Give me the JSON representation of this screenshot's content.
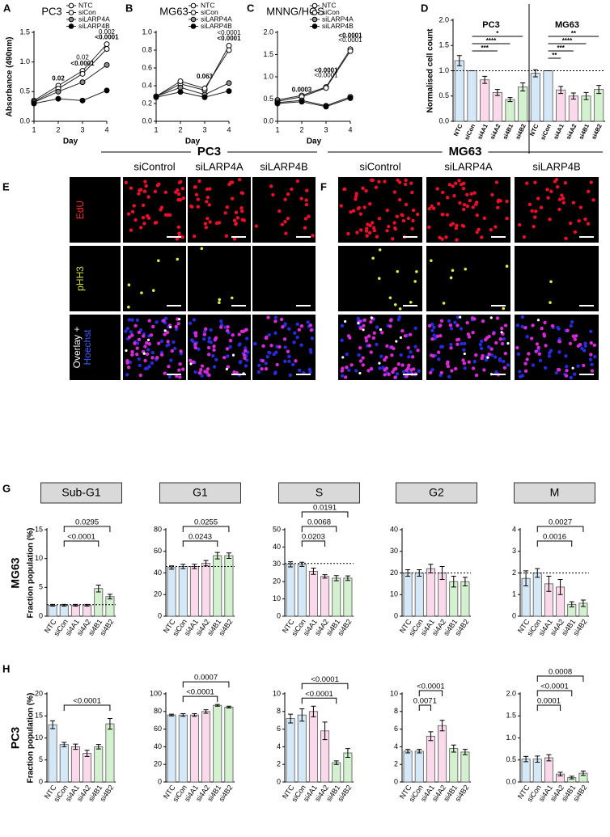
{
  "chart_data": [
    {
      "type": "line",
      "panel": "A",
      "title": "PC3",
      "ylabel": "Absorbance (490nm)",
      "xlabel": "Day",
      "x": [
        1,
        2,
        3,
        4
      ],
      "xlim": [
        1,
        4
      ],
      "xticks": [
        1,
        2,
        3,
        4
      ],
      "ylim": [
        0,
        1.5
      ],
      "yticks": [
        {
          "value": 0,
          "label": "0.0"
        },
        0.5,
        {
          "value": 1,
          "label": "1.0"
        },
        1.5
      ],
      "series": [
        {
          "name": "NTC",
          "color": "#ffffff",
          "values": [
            0.35,
            0.6,
            0.85,
            1.3
          ]
        },
        {
          "name": "siCon",
          "color": "#ffffff",
          "values": [
            0.33,
            0.55,
            0.8,
            1.22
          ]
        },
        {
          "name": "siLARP4A",
          "color": "#8c8c8c",
          "values": [
            0.32,
            0.5,
            0.66,
            0.95
          ]
        },
        {
          "name": "siLARP4B",
          "color": "#000000",
          "values": [
            0.3,
            0.38,
            0.35,
            0.52
          ]
        }
      ],
      "annotations": [
        {
          "x": 2,
          "y": 0.72,
          "text": "0.02",
          "color": "#000000",
          "bold": true
        },
        {
          "x": 3,
          "y": 1.07,
          "text": "0.02",
          "color": "#8c8c8c",
          "bold": false
        },
        {
          "x": 3,
          "y": 0.97,
          "text": "<0.0001",
          "color": "#000000",
          "bold": true
        },
        {
          "x": 4,
          "y": 1.5,
          "text": "0.002",
          "color": "#8c8c8c",
          "bold": false
        },
        {
          "x": 4,
          "y": 1.41,
          "text": "<0.0001",
          "color": "#000000",
          "bold": true
        }
      ]
    },
    {
      "type": "line",
      "panel": "B",
      "title": "MG63",
      "xlabel": "Day",
      "x": [
        1,
        2,
        3,
        4
      ],
      "xlim": [
        1,
        4
      ],
      "xticks": [
        1,
        2,
        3,
        4
      ],
      "ylim": [
        0,
        1
      ],
      "yticks": [
        {
          "value": 0,
          "label": "0.0"
        },
        0.2,
        0.4,
        0.6,
        0.8,
        {
          "value": 1,
          "label": "1.0"
        }
      ],
      "series": [
        {
          "name": "NTC",
          "color": "#ffffff",
          "values": [
            0.28,
            0.42,
            0.35,
            0.85
          ]
        },
        {
          "name": "siCon",
          "color": "#ffffff",
          "values": [
            0.28,
            0.45,
            0.37,
            0.8
          ]
        },
        {
          "name": "siLARP4A",
          "color": "#8c8c8c",
          "values": [
            0.28,
            0.38,
            0.3,
            0.43
          ]
        },
        {
          "name": "siLARP4B",
          "color": "#000000",
          "values": [
            0.27,
            0.33,
            0.27,
            0.34
          ]
        }
      ],
      "annotations": [
        {
          "x": 3,
          "y": 0.5,
          "text": "0.063",
          "color": "#000000",
          "bold": true
        },
        {
          "x": 4,
          "y": 0.99,
          "text": "<0.0001",
          "color": "#8c8c8c",
          "bold": false
        },
        {
          "x": 4,
          "y": 0.93,
          "text": "<0.0001",
          "color": "#000000",
          "bold": true
        }
      ]
    },
    {
      "type": "line",
      "panel": "C",
      "title": "MNNG/HOS",
      "xlabel": "Day",
      "x": [
        1,
        2,
        3,
        4
      ],
      "xlim": [
        1,
        4
      ],
      "xticks": [
        1,
        2,
        3,
        4
      ],
      "ylim": [
        0,
        2
      ],
      "yticks": [
        {
          "value": 0,
          "label": "0.0"
        },
        0.5,
        {
          "value": 1,
          "label": "1.0"
        },
        1.5,
        {
          "value": 2,
          "label": "2.0"
        }
      ],
      "series": [
        {
          "name": "NTC",
          "color": "#ffffff",
          "values": [
            0.48,
            0.58,
            0.77,
            1.62
          ]
        },
        {
          "name": "siCon",
          "color": "#ffffff",
          "values": [
            0.45,
            0.55,
            0.75,
            1.58
          ]
        },
        {
          "name": "siLARP4A",
          "color": "#8c8c8c",
          "values": [
            0.42,
            0.47,
            0.35,
            0.55
          ]
        },
        {
          "name": "siLARP4B",
          "color": "#000000",
          "values": [
            0.4,
            0.44,
            0.33,
            0.52
          ]
        }
      ],
      "annotations": [
        {
          "x": 2,
          "y": 0.7,
          "text": "0.0003",
          "color": "#000000",
          "bold": true
        },
        {
          "x": 3,
          "y": 1.14,
          "text": "<0.0001",
          "color": "#000000",
          "bold": true
        },
        {
          "x": 3,
          "y": 1.03,
          "text": "<0.0001",
          "color": "#8c8c8c",
          "bold": false
        },
        {
          "x": 4,
          "y": 1.92,
          "text": "<0.0001",
          "color": "#000000",
          "bold": true
        },
        {
          "x": 4,
          "y": 1.82,
          "text": "<0.0001",
          "color": "#8c8c8c",
          "bold": false
        }
      ]
    },
    {
      "type": "grouped_bar",
      "panel": "D",
      "ylabel": "Normalised cell count",
      "categories": [
        "NTC",
        "siCon",
        "si4A1",
        "si4A2",
        "si4B1",
        "si4B2"
      ],
      "colors": [
        "#d5e8f7",
        "#d5e8f7",
        "#f9d9ea",
        "#f9d9ea",
        "#d3f0cf",
        "#d3f0cf"
      ],
      "ylim": [
        0,
        2
      ],
      "yticks": [
        {
          "value": 0,
          "label": "0.0"
        },
        0.5,
        {
          "value": 1,
          "label": "1.0"
        },
        1.5,
        {
          "value": 2,
          "label": "2.0"
        }
      ],
      "ref_line": 1,
      "groups": [
        {
          "name": "PC3",
          "values": [
            1.2,
            1.0,
            0.82,
            0.57,
            0.43,
            0.68
          ],
          "errors": [
            0.1,
            0,
            0.07,
            0.06,
            0.04,
            0.08
          ],
          "brackets": [
            {
              "from": 1,
              "to": 5,
              "label": "*"
            },
            {
              "from": 1,
              "to": 4,
              "label": "****"
            },
            {
              "from": 1,
              "to": 3,
              "label": "***"
            }
          ]
        },
        {
          "name": "MG63",
          "values": [
            0.95,
            1.0,
            0.62,
            0.5,
            0.5,
            0.63
          ],
          "errors": [
            0.07,
            0,
            0.07,
            0.06,
            0.07,
            0.08
          ],
          "brackets": [
            {
              "from": 1,
              "to": 5,
              "label": "**"
            },
            {
              "from": 1,
              "to": 4,
              "label": "****"
            },
            {
              "from": 1,
              "to": 3,
              "label": "***"
            },
            {
              "from": 1,
              "to": 2,
              "label": "**"
            }
          ]
        }
      ]
    },
    {
      "type": "bar",
      "panel": "G",
      "row_label": "MG63",
      "ylabel": "Fraction population (%)",
      "title": "Sub-G1",
      "categories": [
        "NTC",
        "siCon",
        "si4A1",
        "si4A2",
        "si4B1",
        "si4B2"
      ],
      "colors": [
        "#d5e8f7",
        "#d5e8f7",
        "#f9d9ea",
        "#f9d9ea",
        "#d3f0cf",
        "#d3f0cf"
      ],
      "values": [
        1.9,
        1.9,
        1.9,
        1.9,
        4.8,
        3.4
      ],
      "errors": [
        0.15,
        0.15,
        0.15,
        0.15,
        0.6,
        0.4
      ],
      "ylim": [
        0,
        15
      ],
      "yticks": [
        0,
        5,
        10,
        15
      ],
      "ref_line": 2,
      "brackets": [
        {
          "from": 1,
          "to": 5,
          "label": "0.0295"
        },
        {
          "from": 1,
          "to": 4,
          "label": "<0.0001"
        }
      ]
    },
    {
      "type": "bar",
      "title": "G1",
      "categories": [
        "NTC",
        "siCon",
        "si4A1",
        "si4A2",
        "si4B1",
        "si4B2"
      ],
      "colors": [
        "#d5e8f7",
        "#d5e8f7",
        "#f9d9ea",
        "#f9d9ea",
        "#d3f0cf",
        "#d3f0cf"
      ],
      "values": [
        45,
        46,
        46,
        49,
        56,
        56
      ],
      "errors": [
        1.5,
        2,
        2,
        2.5,
        3,
        2.5
      ],
      "ylim": [
        0,
        80
      ],
      "yticks": [
        0,
        20,
        40,
        60,
        80
      ],
      "ref_line": 46,
      "brackets": [
        {
          "from": 1,
          "to": 5,
          "label": "0.0255"
        },
        {
          "from": 1,
          "to": 4,
          "label": "0.0243"
        }
      ]
    },
    {
      "type": "bar",
      "title": "S",
      "categories": [
        "NTC",
        "siCon",
        "si4A1",
        "si4A2",
        "si4B1",
        "si4B2"
      ],
      "colors": [
        "#d5e8f7",
        "#d5e8f7",
        "#f9d9ea",
        "#f9d9ea",
        "#d3f0cf",
        "#d3f0cf"
      ],
      "values": [
        30,
        30,
        26,
        23,
        22,
        22
      ],
      "errors": [
        1.5,
        1.2,
        1.8,
        1,
        1.5,
        1.3
      ],
      "ylim": [
        0,
        50
      ],
      "yticks": [
        0,
        10,
        20,
        30,
        40,
        50
      ],
      "ref_line": 30.5,
      "brackets": [
        {
          "from": 1,
          "to": 5,
          "label": "0.0191"
        },
        {
          "from": 1,
          "to": 4,
          "label": "0.0068"
        },
        {
          "from": 1,
          "to": 3,
          "label": "0.0203"
        }
      ]
    },
    {
      "type": "bar",
      "title": "G2",
      "categories": [
        "NTC",
        "siCon",
        "si4A1",
        "si4A2",
        "si4B1",
        "si4B2"
      ],
      "colors": [
        "#d5e8f7",
        "#d5e8f7",
        "#f9d9ea",
        "#f9d9ea",
        "#d3f0cf",
        "#d3f0cf"
      ],
      "values": [
        20,
        20,
        22,
        20,
        16,
        16
      ],
      "errors": [
        1.5,
        1.5,
        2,
        3,
        2.5,
        2
      ],
      "ylim": [
        0,
        40
      ],
      "yticks": [
        0,
        10,
        20,
        30,
        40
      ],
      "ref_line": 20,
      "brackets": []
    },
    {
      "type": "bar",
      "title": "M",
      "categories": [
        "NTC",
        "siCon",
        "si4A1",
        "si4A2",
        "si4B1",
        "si4B2"
      ],
      "colors": [
        "#d5e8f7",
        "#d5e8f7",
        "#f9d9ea",
        "#f9d9ea",
        "#d3f0cf",
        "#d3f0cf"
      ],
      "values": [
        1.75,
        2.0,
        1.5,
        1.35,
        0.55,
        0.6
      ],
      "errors": [
        0.35,
        0.2,
        0.35,
        0.35,
        0.12,
        0.15
      ],
      "ylim": [
        0,
        4
      ],
      "yticks": [
        0,
        1,
        2,
        3,
        4
      ],
      "ref_line": 2,
      "brackets": [
        {
          "from": 1,
          "to": 5,
          "label": "0.0027"
        },
        {
          "from": 1,
          "to": 4,
          "label": "0.0016"
        }
      ]
    },
    {
      "type": "bar",
      "panel": "H",
      "row_label": "PC3",
      "ylabel": "Fraction population (%)",
      "categories": [
        "NTC",
        "siCon",
        "si4A1",
        "si4A2",
        "si4B1",
        "si4B2"
      ],
      "colors": [
        "#d5e8f7",
        "#d5e8f7",
        "#f9d9ea",
        "#f9d9ea",
        "#d3f0cf",
        "#d3f0cf"
      ],
      "values": [
        13,
        8.5,
        8,
        6.5,
        8,
        13.2
      ],
      "errors": [
        0.9,
        0.5,
        0.6,
        0.7,
        0.5,
        1.2
      ],
      "ylim": [
        0,
        20
      ],
      "yticks": [
        0,
        5,
        10,
        15,
        20
      ],
      "brackets": [
        {
          "from": 1,
          "to": 5,
          "label": "<0.0001"
        }
      ]
    },
    {
      "type": "bar",
      "categories": [
        "NTC",
        "siCon",
        "si4A1",
        "si4A2",
        "si4B1",
        "si4B2"
      ],
      "colors": [
        "#d5e8f7",
        "#d5e8f7",
        "#f9d9ea",
        "#f9d9ea",
        "#d3f0cf",
        "#d3f0cf"
      ],
      "values": [
        76,
        76,
        76,
        80,
        87,
        85
      ],
      "errors": [
        1,
        1.5,
        1.5,
        2,
        1,
        1
      ],
      "ylim": [
        0,
        100
      ],
      "yticks": [
        0,
        20,
        40,
        60,
        80,
        100
      ],
      "brackets": [
        {
          "from": 1,
          "to": 5,
          "label": "0.0007"
        },
        {
          "from": 1,
          "to": 4,
          "label": "<0.0001"
        }
      ]
    },
    {
      "type": "bar",
      "categories": [
        "NTC",
        "siCon",
        "si4A1",
        "si4A2",
        "si4B1",
        "si4B2"
      ],
      "colors": [
        "#d5e8f7",
        "#d5e8f7",
        "#f9d9ea",
        "#f9d9ea",
        "#d3f0cf",
        "#d3f0cf"
      ],
      "values": [
        7.2,
        7.6,
        8,
        5.8,
        2.2,
        3.3
      ],
      "errors": [
        0.5,
        0.7,
        0.6,
        1,
        0.2,
        0.5
      ],
      "ylim": [
        0,
        10
      ],
      "yticks": [
        0,
        2,
        4,
        6,
        8,
        10
      ],
      "brackets": [
        {
          "from": 1,
          "to": 5,
          "label": "<0.0001"
        },
        {
          "from": 1,
          "to": 4,
          "label": "<0.0001"
        }
      ]
    },
    {
      "type": "bar",
      "categories": [
        "NTC",
        "siCon",
        "si4A1",
        "si4A2",
        "si4B1",
        "si4B2"
      ],
      "colors": [
        "#d5e8f7",
        "#d5e8f7",
        "#f9d9ea",
        "#f9d9ea",
        "#d3f0cf",
        "#d3f0cf"
      ],
      "values": [
        3.5,
        3.5,
        5.2,
        6.4,
        3.8,
        3.4
      ],
      "errors": [
        0.2,
        0.2,
        0.5,
        0.6,
        0.4,
        0.3
      ],
      "ylim": [
        0,
        10
      ],
      "yticks": [
        0,
        2,
        4,
        6,
        8,
        10
      ],
      "brackets": [
        {
          "from": 1,
          "to": 3,
          "label": "<0.0001"
        },
        {
          "from": 1,
          "to": 2,
          "label": "0.0071"
        }
      ]
    },
    {
      "type": "bar",
      "categories": [
        "NTC",
        "siCon",
        "si4A1",
        "si4A2",
        "si4B1",
        "si4B2"
      ],
      "colors": [
        "#d5e8f7",
        "#d5e8f7",
        "#f9d9ea",
        "#f9d9ea",
        "#d3f0cf",
        "#d3f0cf"
      ],
      "values": [
        0.52,
        0.52,
        0.55,
        0.18,
        0.1,
        0.2
      ],
      "errors": [
        0.06,
        0.07,
        0.07,
        0.04,
        0.03,
        0.05
      ],
      "ylim": [
        0,
        2
      ],
      "yticks": [
        {
          "value": 0,
          "label": "0.0"
        },
        0.5,
        {
          "value": 1,
          "label": "1.0"
        },
        1.5,
        {
          "value": 2,
          "label": "2.0"
        }
      ],
      "brackets": [
        {
          "from": 1,
          "to": 5,
          "label": "0.0008"
        },
        {
          "from": 1,
          "to": 4,
          "label": "<0.0001"
        },
        {
          "from": 1,
          "to": 3,
          "label": "0.0001"
        }
      ]
    }
  ],
  "images": {
    "panels": [
      {
        "panel": "E",
        "title": "PC3",
        "columns": [
          "siControl",
          "siLARP4A",
          "siLARP4B"
        ],
        "row_labels": [
          [
            "EdU"
          ],
          [
            "pHH3"
          ],
          [
            "Overlay +",
            "Hoechst"
          ]
        ]
      },
      {
        "panel": "F",
        "title": "MG63",
        "columns": [
          "siControl",
          "siLARP4A",
          "siLARP4B"
        ]
      }
    ]
  }
}
